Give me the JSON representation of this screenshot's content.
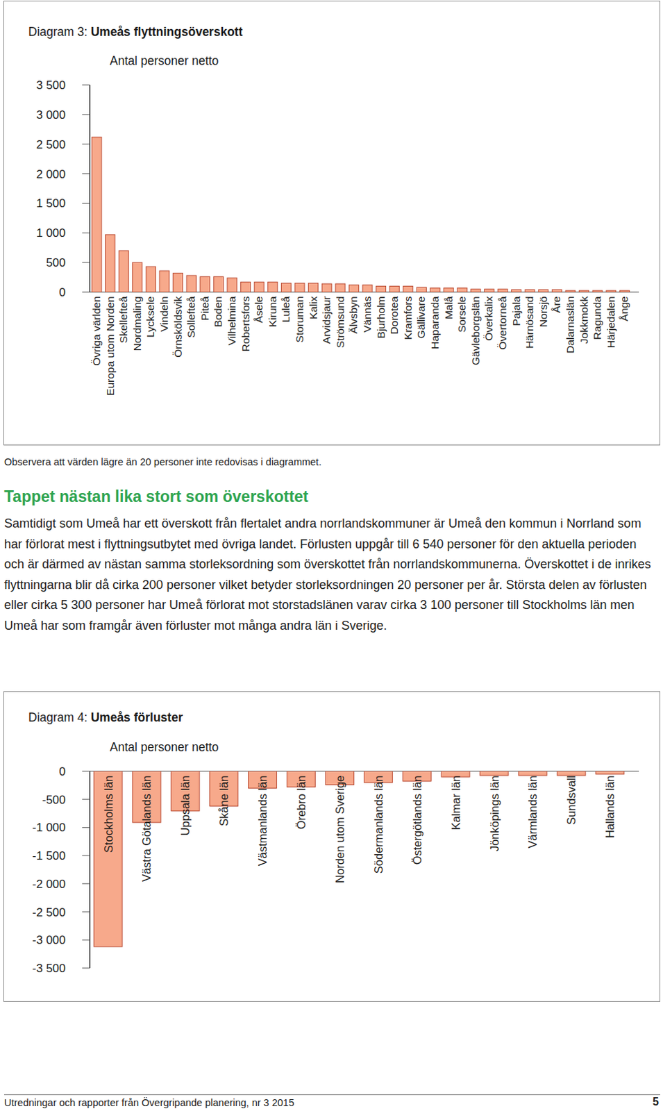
{
  "chart_data": [
    {
      "type": "bar",
      "title": "Diagram 3: Umeås flyttningsöverskott",
      "ylabel": "Antal personer netto",
      "categories": [
        "Övriga världen",
        "Europa utom Norden",
        "Skellefteå",
        "Nordmaling",
        "Lycksele",
        "Vindeln",
        "Örnsköldsvik",
        "Sollefteå",
        "Piteå",
        "Boden",
        "Vilhelmina",
        "Robertsfors",
        "Åsele",
        "Kiruna",
        "Luleå",
        "Storuman",
        "Kalix",
        "Arvidsjaur",
        "Strömsund",
        "Älvsbyn",
        "Vännäs",
        "Bjurholm",
        "Dorotea",
        "Kramfors",
        "Gällivare",
        "Haparanda",
        "Malå",
        "Sorsele",
        "Gävleborgslän",
        "Överkalix",
        "Övertorneå",
        "Pajala",
        "Härnösand",
        "Norsjö",
        "Åre",
        "Dalarnaslän",
        "Jokkmokk",
        "Ragunda",
        "Härjedalen",
        "Ånge"
      ],
      "values": [
        2620,
        970,
        700,
        500,
        430,
        360,
        320,
        280,
        260,
        260,
        240,
        170,
        170,
        170,
        150,
        150,
        150,
        140,
        140,
        120,
        120,
        100,
        100,
        100,
        80,
        70,
        70,
        70,
        50,
        50,
        50,
        40,
        40,
        40,
        40,
        25,
        25,
        25,
        25,
        25
      ],
      "color": "#f7a98b",
      "ylim": [
        0,
        3500
      ],
      "yticks": [
        0,
        500,
        {
          "value": 1000,
          "label": "1 000"
        },
        {
          "value": 1500,
          "label": "1 500"
        },
        {
          "value": 2000,
          "label": "2 000"
        },
        {
          "value": 2500,
          "label": "2 500"
        },
        {
          "value": 3000,
          "label": "3 000"
        },
        {
          "value": 3500,
          "label": "3 500"
        }
      ],
      "grid": false
    },
    {
      "type": "bar",
      "title": "Diagram 4: Umeås förluster",
      "ylabel": "Antal personer netto",
      "categories": [
        "Stockholms län",
        "Västra Götalands län",
        "Uppsala län",
        "Skåne län",
        "Västmanlands län",
        "Örebro län",
        "Norden utom Sverige",
        "Södermanlands län",
        "Östergötlands län",
        "Kalmar län",
        "Jönköpings län",
        "Värmlands län",
        "Sundsvall",
        "Hallands län"
      ],
      "values": [
        -3120,
        -910,
        -705,
        -620,
        -300,
        -280,
        -240,
        -200,
        -175,
        -100,
        -75,
        -75,
        -75,
        -50
      ],
      "color": "#f7a98b",
      "ylim": [
        -3500,
        0
      ],
      "yticks": [
        0,
        -500,
        {
          "value": -1000,
          "label": "-1 000"
        },
        {
          "value": -1500,
          "label": "-1 500"
        },
        {
          "value": -2000,
          "label": "-2 000"
        },
        {
          "value": -2500,
          "label": "-2 500"
        },
        {
          "value": -3000,
          "label": "-3 000"
        },
        {
          "value": -3500,
          "label": "-3 500"
        }
      ],
      "grid": false
    }
  ],
  "document": {
    "note": "Observera att värden lägre än 20 personer inte redovisas i diagrammet.",
    "heading": "Tappet nästan lika stort som överskottet",
    "paragraph": "Samtidigt som Umeå har ett överskott från flertalet andra norrlandskommuner är Umeå den kommun i Norrland som har förlorat mest i flyttningsutbytet med övriga landet. Förlusten uppgår till 6 540 personer för den aktuella perioden och är därmed av nästan samma storleksordning som överskottet från norrland­skommunerna. Överskottet i de inrikes flyttningarna blir då cirka 200 personer vilket betyder storleksordningen 20 personer per år. Största delen av förlusten eller cirka 5 300 personer har Umeå förlorat mot storstadslänen varav cirka 3 100 personer till Stockholms län men Umeå har som framgår även förluster mot många andra län i Sverige.",
    "footer": "Utredningar och rapporter från Övergripande planering, nr 3 2015",
    "page_number": "5"
  }
}
